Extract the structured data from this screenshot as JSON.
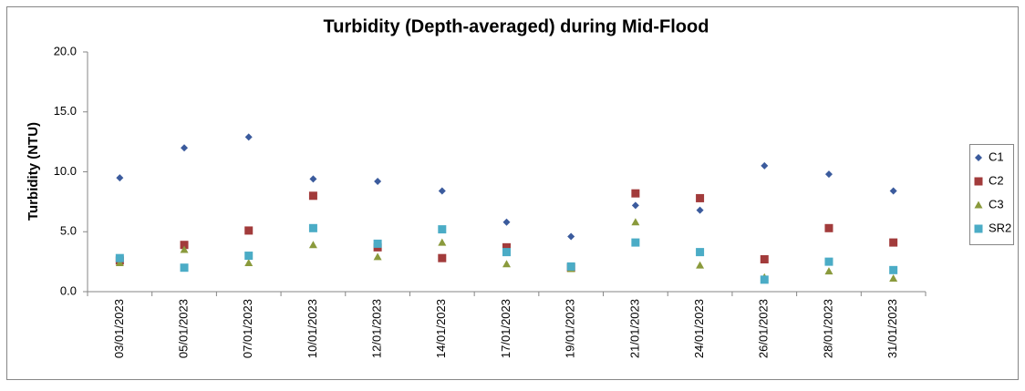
{
  "chart_data": {
    "type": "scatter",
    "title": "Turbidity (Depth-averaged) during Mid-Flood",
    "y_label": "Turbidity (NTU)",
    "categories": [
      "03/01/2023",
      "05/01/2023",
      "07/01/2023",
      "10/01/2023",
      "12/01/2023",
      "14/01/2023",
      "17/01/2023",
      "19/01/2023",
      "21/01/2023",
      "24/01/2023",
      "26/01/2023",
      "28/01/2023",
      "31/01/2023"
    ],
    "series": [
      {
        "name": "C1",
        "color": "#3b5b9d",
        "marker": "diamond",
        "values": [
          9.5,
          12.0,
          12.9,
          9.4,
          9.2,
          8.4,
          5.8,
          4.6,
          7.2,
          6.8,
          10.5,
          9.8,
          8.4
        ]
      },
      {
        "name": "C2",
        "color": "#a23b3b",
        "marker": "square",
        "values": [
          2.6,
          3.9,
          5.1,
          8.0,
          3.7,
          2.8,
          3.7,
          2.0,
          8.2,
          7.8,
          2.7,
          5.3,
          4.1
        ]
      },
      {
        "name": "C3",
        "color": "#8a9a3c",
        "marker": "triangle",
        "values": [
          2.4,
          3.5,
          2.4,
          3.9,
          2.9,
          4.1,
          2.3,
          1.9,
          5.8,
          2.2,
          1.2,
          1.7,
          1.1
        ]
      },
      {
        "name": "SR2",
        "color": "#4bacc6",
        "marker": "square",
        "values": [
          2.8,
          2.0,
          3.0,
          5.3,
          4.0,
          5.2,
          3.3,
          2.1,
          4.1,
          3.3,
          1.0,
          2.5,
          1.8
        ]
      }
    ],
    "ylim": [
      0,
      20
    ],
    "yticks": [
      {
        "value": 0,
        "label": "0.0"
      },
      {
        "value": 5,
        "label": "5.0"
      },
      {
        "value": 10,
        "label": "10.0"
      },
      {
        "value": 15,
        "label": "15.0"
      },
      {
        "value": 20,
        "label": "20.0"
      }
    ],
    "grid": false,
    "legend": "right"
  }
}
